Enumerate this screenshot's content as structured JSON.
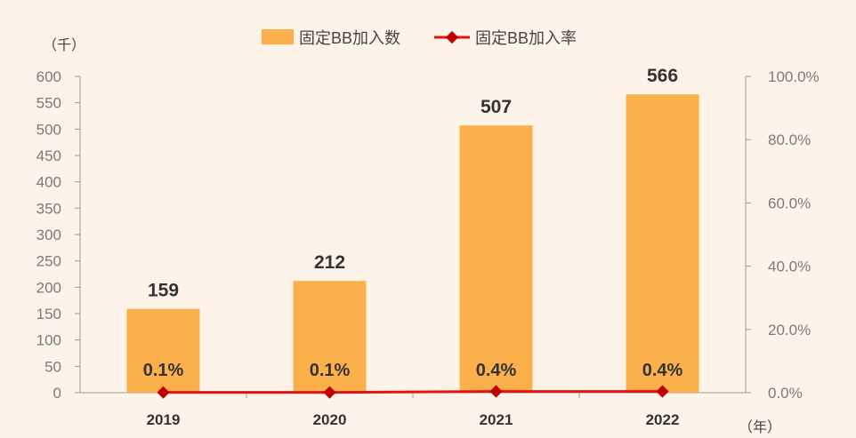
{
  "chart_data": {
    "type": "bar",
    "categories": [
      "2019",
      "2020",
      "2021",
      "2022"
    ],
    "series": [
      {
        "name": "固定BB加入数",
        "type": "bar",
        "axis": "left",
        "values": [
          159,
          212,
          507,
          566
        ],
        "labels": [
          "159",
          "212",
          "507",
          "566"
        ],
        "color": "#FBB04B"
      },
      {
        "name": "固定BB加入率",
        "type": "line",
        "axis": "right",
        "values": [
          0.1,
          0.1,
          0.4,
          0.4
        ],
        "labels": [
          "0.1%",
          "0.1%",
          "0.4%",
          "0.4%"
        ],
        "color": "#E01414"
      }
    ],
    "left_axis": {
      "unit_label": "（千）",
      "ylim": [
        0,
        600
      ],
      "ticks": [
        "0",
        "50",
        "100",
        "150",
        "200",
        "250",
        "300",
        "350",
        "400",
        "450",
        "500",
        "550",
        "600"
      ]
    },
    "right_axis": {
      "ylim": [
        0,
        100
      ],
      "ticks": [
        "0.0%",
        "20.0%",
        "40.0%",
        "60.0%",
        "80.0%",
        "100.0%"
      ]
    },
    "x_unit_label": "（年）",
    "legend": "top-center",
    "grid": false
  }
}
